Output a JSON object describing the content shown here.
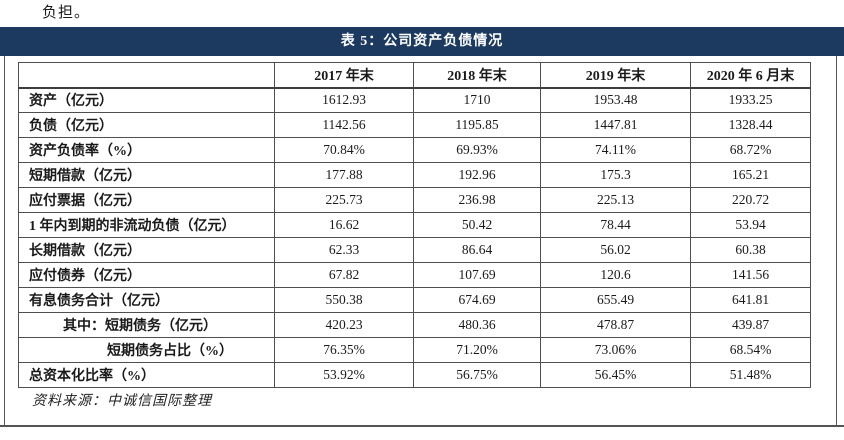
{
  "page": {
    "intro_text": "负担。",
    "source_note": "资料来源：中诚信国际整理"
  },
  "title_bar": {
    "label": "表 5：公司资产负债情况",
    "bg_color": "#1c3a60",
    "text_color": "#ffffff"
  },
  "colors": {
    "grid_line": "#4f4f4f",
    "bottom_rule": "#555555",
    "body_text": "#1a1a1a"
  },
  "table": {
    "columns": [
      "",
      "2017 年末",
      "2018 年末",
      "2019 年末",
      "2020 年 6 月末"
    ],
    "rows": [
      {
        "label": "资产（亿元）",
        "indent": 0,
        "values": [
          "1612.93",
          "1710",
          "1953.48",
          "1933.25"
        ]
      },
      {
        "label": "负债（亿元）",
        "indent": 0,
        "values": [
          "1142.56",
          "1195.85",
          "1447.81",
          "1328.44"
        ]
      },
      {
        "label": "资产负债率（%）",
        "indent": 0,
        "values": [
          "70.84%",
          "69.93%",
          "74.11%",
          "68.72%"
        ]
      },
      {
        "label": "短期借款（亿元）",
        "indent": 0,
        "values": [
          "177.88",
          "192.96",
          "175.3",
          "165.21"
        ]
      },
      {
        "label": "应付票据（亿元）",
        "indent": 0,
        "values": [
          "225.73",
          "236.98",
          "225.13",
          "220.72"
        ]
      },
      {
        "label": "1 年内到期的非流动负债（亿元）",
        "indent": 0,
        "values": [
          "16.62",
          "50.42",
          "78.44",
          "53.94"
        ]
      },
      {
        "label": "长期借款（亿元）",
        "indent": 0,
        "values": [
          "62.33",
          "86.64",
          "56.02",
          "60.38"
        ]
      },
      {
        "label": "应付债券（亿元）",
        "indent": 0,
        "values": [
          "67.82",
          "107.69",
          "120.6",
          "141.56"
        ]
      },
      {
        "label": "有息债务合计（亿元）",
        "indent": 0,
        "values": [
          "550.38",
          "674.69",
          "655.49",
          "641.81"
        ]
      },
      {
        "label": "其中：短期债务（亿元）",
        "indent": 1,
        "values": [
          "420.23",
          "480.36",
          "478.87",
          "439.87"
        ]
      },
      {
        "label": "短期债务占比（%）",
        "indent": 2,
        "values": [
          "76.35%",
          "71.20%",
          "73.06%",
          "68.54%"
        ]
      },
      {
        "label": "总资本化比率（%）",
        "indent": 0,
        "values": [
          "53.92%",
          "56.75%",
          "56.45%",
          "51.48%"
        ]
      }
    ]
  }
}
